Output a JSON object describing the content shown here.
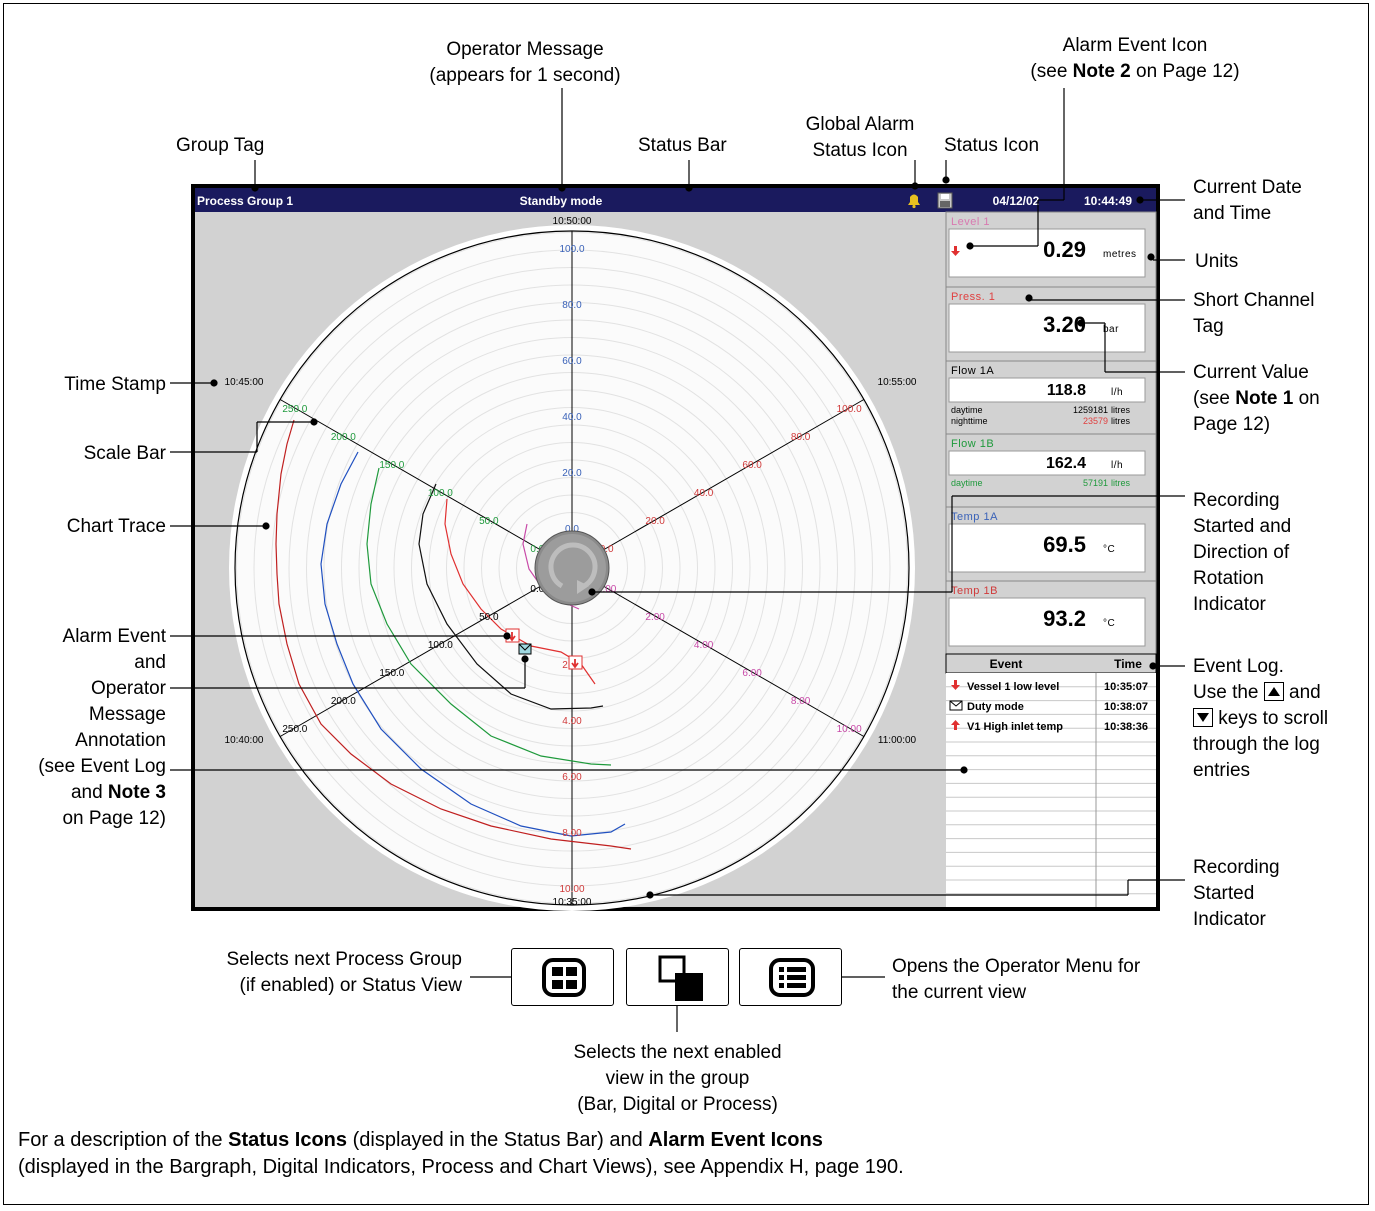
{
  "labels": {
    "operator_message": "Operator Message\n(appears for 1 second)",
    "alarm_event_icon_l1": "Alarm Event Icon",
    "alarm_event_icon_l2_pre": "(see ",
    "alarm_event_icon_l2_bold": "Note 2",
    "alarm_event_icon_l2_post": " on Page 12)",
    "global_alarm": "Global Alarm\nStatus Icon",
    "status_icon": "Status Icon",
    "group_tag": "Group Tag",
    "status_bar": "Status Bar",
    "current_date_time": "Current Date\nand Time",
    "units": "Units",
    "short_channel_tag": "Short Channel\nTag",
    "current_value_l1": "Current Value",
    "current_value_l2_pre": "(see ",
    "current_value_l2_bold": "Note 1",
    "current_value_l2_post": " on",
    "current_value_l3": "Page 12)",
    "time_stamp": "Time Stamp",
    "scale_bar": "Scale Bar",
    "chart_trace": "Chart Trace",
    "recording_direction": "Recording\nStarted and\nDirection of\nRotation\nIndicator",
    "alarm_annotation_l1": "Alarm Event",
    "alarm_annotation_l2": "and",
    "alarm_annotation_l3": "Operator",
    "alarm_annotation_l4": "Message",
    "alarm_annotation_l5": "Annotation",
    "alarm_annotation_l6": "(see Event Log",
    "alarm_annotation_l7_pre": "and ",
    "alarm_annotation_l7_bold": "Note 3",
    "alarm_annotation_l8": "on Page 12)",
    "event_log_l1": "Event Log.",
    "event_log_l2_pre": "Use the ",
    "event_log_l2_post": " and",
    "event_log_l3_post": " keys to scroll",
    "event_log_l4": "through the log",
    "event_log_l5": "entries",
    "recording_started": "Recording\nStarted\nIndicator",
    "selects_group": "Selects next Process Group\n(if enabled) or Status View",
    "opens_menu": "Opens the Operator Menu for\nthe current view",
    "selects_view": "Selects the next enabled\nview in the group\n(Bar, Digital or Process)"
  },
  "footer": {
    "p1_a": "For a description of the ",
    "p1_b": "Status Icons",
    "p1_c": " (displayed in the Status Bar) and ",
    "p1_d": "Alarm Event Icons",
    "p2": "(displayed in the Bargraph, Digital Indicators, Process and Chart Views), see Appendix H, page 190."
  },
  "screen": {
    "group_tag": "Process Group 1",
    "status_message": "Standby mode",
    "date": "04/12/02",
    "time": "10:44:49",
    "colors": {
      "status_bar": "#1a1a5e",
      "chart_bg": "#d2d2d2"
    }
  },
  "chart_data": {
    "type": "circular-chart",
    "time_stamps": {
      "top": "10:50:00",
      "right": "10:55:00",
      "lower_right": "11:00:00",
      "bottom": "10:35:00",
      "lower_left": "10:40:00",
      "left": "10:45:00"
    },
    "scales": [
      {
        "color": "#3a62b8",
        "ticks": [
          "0.0",
          "20.0",
          "40.0",
          "60.0",
          "80.0",
          "100.0"
        ]
      },
      {
        "color": "#d03a3a",
        "ticks": [
          "0.0",
          "20.0",
          "40.0",
          "60.0",
          "80.0",
          "100.0"
        ]
      },
      {
        "color": "#c84aa8",
        "ticks": [
          "0.00",
          "2.00",
          "4.00",
          "6.00",
          "8.00",
          "10.00"
        ]
      },
      {
        "color": "#d03a3a",
        "ticks": [
          "2.00",
          "4.00",
          "6.00",
          "8.00",
          "10.00"
        ]
      },
      {
        "color": "#000000",
        "ticks": [
          "0.0",
          "50.0",
          "100.0",
          "150.0",
          "200.0",
          "250.0"
        ]
      },
      {
        "color": "#1f9a3c",
        "ticks": [
          "0.0",
          "50.0",
          "100.0",
          "150.0",
          "200.0",
          "250.0"
        ]
      }
    ]
  },
  "channels": [
    {
      "tag": "Level 1",
      "tag_color": "#d87ab0",
      "value": "0.29",
      "unit": "metres",
      "alarm": true
    },
    {
      "tag": "Press. 1",
      "tag_color": "#e04040",
      "value": "3.20",
      "unit": "bar"
    },
    {
      "tag": "Flow 1A",
      "tag_color": "#000000",
      "value": "118.8",
      "unit": "l/h",
      "totals": [
        {
          "name": "daytime",
          "value": "1259181",
          "unit": "litres",
          "color": "#000000"
        },
        {
          "name": "nighttime",
          "value": "23579",
          "unit": "litres",
          "color": "#e04040"
        }
      ]
    },
    {
      "tag": "Flow 1B",
      "tag_color": "#1f9a3c",
      "value": "162.4",
      "unit": "l/h",
      "totals": [
        {
          "name": "daytime",
          "value": "57191",
          "unit": "litres",
          "color": "#1f9a3c"
        }
      ]
    },
    {
      "tag": "Temp 1A",
      "tag_color": "#3a62b8",
      "value": "69.5",
      "unit": "°C"
    },
    {
      "tag": "Temp 1B",
      "tag_color": "#d03a3a",
      "value": "93.2",
      "unit": "°C"
    }
  ],
  "event_log": {
    "header_event": "Event",
    "header_time": "Time",
    "rows": [
      {
        "icon": "alarm-down-icon",
        "text": "Vessel 1 low level",
        "time": "10:35:07"
      },
      {
        "icon": "envelope-icon",
        "text": "Duty mode",
        "time": "10:38:07"
      },
      {
        "icon": "alarm-up-icon",
        "text": "V1 High inlet temp",
        "time": "10:38:36"
      }
    ]
  },
  "keys": [
    {
      "icon": "group-view-icon"
    },
    {
      "icon": "next-view-icon"
    },
    {
      "icon": "menu-icon"
    }
  ]
}
